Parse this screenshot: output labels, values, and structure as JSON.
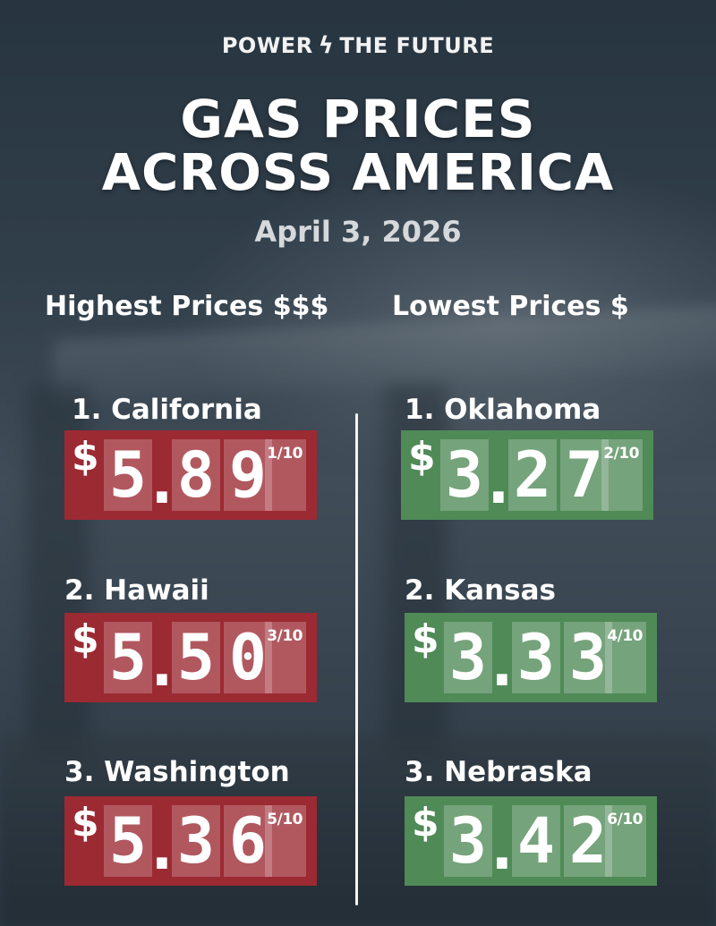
{
  "brand": {
    "left": "POWER",
    "right": "THE FUTURE",
    "icon": "lightning-bolt-icon"
  },
  "title": {
    "line1": "GAS PRICES",
    "line2": "ACROSS AMERICA"
  },
  "date": "April 3, 2026",
  "columns": {
    "highest": "Highest Prices $$$",
    "lowest": "Lowest Prices $"
  },
  "currency": "$",
  "highest": [
    {
      "rank_name": "1. California",
      "d1": "5",
      "d2": "8",
      "d3": "9",
      "fraction": "1/10"
    },
    {
      "rank_name": "2. Hawaii",
      "d1": "5",
      "d2": "5",
      "d3": "0",
      "fraction": "3/10"
    },
    {
      "rank_name": "3. Washington",
      "d1": "5",
      "d2": "3",
      "d3": "6",
      "fraction": "5/10"
    }
  ],
  "lowest": [
    {
      "rank_name": "1. Oklahoma",
      "d1": "3",
      "d2": "2",
      "d3": "7",
      "fraction": "2/10"
    },
    {
      "rank_name": "2. Kansas",
      "d1": "3",
      "d2": "3",
      "d3": "3",
      "fraction": "4/10"
    },
    {
      "rank_name": "3. Nebraska",
      "d1": "3",
      "d2": "4",
      "d3": "2",
      "fraction": "6/10"
    }
  ],
  "colors": {
    "high": "#9b2a33",
    "low": "#4f8a57"
  }
}
